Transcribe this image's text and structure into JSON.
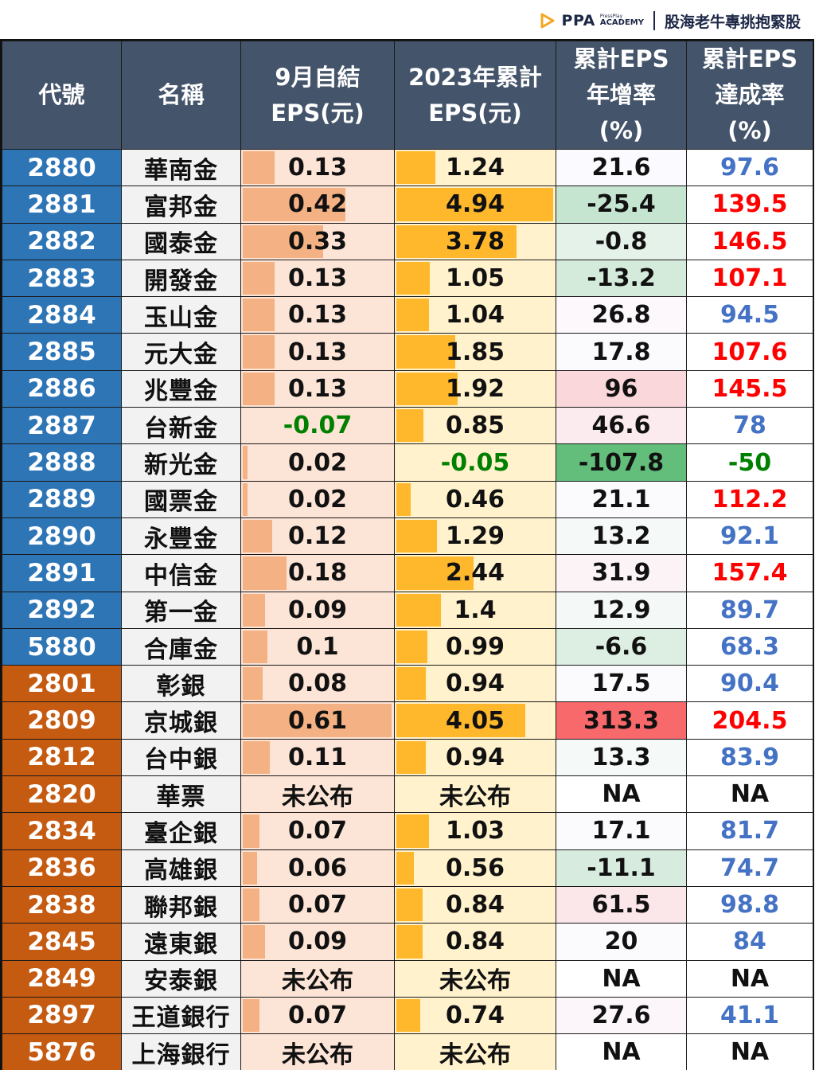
{
  "brand": {
    "logo": "ppa-play-icon",
    "name": "PPA",
    "sub_top": "PressPlay",
    "sub_bottom": "ACADEMY",
    "slogan": "股海老牛專挑抱緊股"
  },
  "colors": {
    "header_bg": "#44546a",
    "financial_code_bg": "#2e75b6",
    "bank_code_bg": "#c55a11",
    "eps_month_bar": "#f4b183",
    "eps_month_bg": "#fce4d6",
    "eps_ytd_bar": "#ffb72b",
    "eps_ytd_bg": "#fff2cc",
    "above_target": "#ff0000",
    "below_target": "#4472c4",
    "negative": "#008000"
  },
  "table": {
    "headers": [
      [
        "代號"
      ],
      [
        "名稱"
      ],
      [
        "9月自結",
        "EPS(元)"
      ],
      [
        "2023年累計",
        "EPS(元)"
      ],
      [
        "累計EPS",
        "年增率",
        "(%)"
      ],
      [
        "累計EPS",
        "達成率",
        "(%)"
      ]
    ],
    "rows": [
      {
        "code": "2880",
        "name": "華南金",
        "group": "fin",
        "eps_sep": "0.13",
        "eps_ytd": "1.24",
        "yoy": "21.6",
        "yoy_bg": "#fbfbff",
        "achieve": "97.6",
        "achieve_color": "blue"
      },
      {
        "code": "2881",
        "name": "富邦金",
        "group": "fin",
        "eps_sep": "0.42",
        "eps_ytd": "4.94",
        "yoy": "-25.4",
        "yoy_bg": "#c6e5d1",
        "achieve": "139.5",
        "achieve_color": "red"
      },
      {
        "code": "2882",
        "name": "國泰金",
        "group": "fin",
        "eps_sep": "0.33",
        "eps_ytd": "3.78",
        "yoy": "-0.8",
        "yoy_bg": "#e4f2e9",
        "achieve": "146.5",
        "achieve_color": "red"
      },
      {
        "code": "2883",
        "name": "開發金",
        "group": "fin",
        "eps_sep": "0.13",
        "eps_ytd": "1.05",
        "yoy": "-13.2",
        "yoy_bg": "#d4ebdc",
        "achieve": "107.1",
        "achieve_color": "red"
      },
      {
        "code": "2884",
        "name": "玉山金",
        "group": "fin",
        "eps_sep": "0.13",
        "eps_ytd": "1.04",
        "yoy": "26.8",
        "yoy_bg": "#fcf8fc",
        "achieve": "94.5",
        "achieve_color": "blue"
      },
      {
        "code": "2885",
        "name": "元大金",
        "group": "fin",
        "eps_sep": "0.13",
        "eps_ytd": "1.85",
        "yoy": "17.8",
        "yoy_bg": "#fbfbfd",
        "achieve": "107.6",
        "achieve_color": "red"
      },
      {
        "code": "2886",
        "name": "兆豐金",
        "group": "fin",
        "eps_sep": "0.13",
        "eps_ytd": "1.92",
        "yoy": "96",
        "yoy_bg": "#fad7db",
        "achieve": "145.5",
        "achieve_color": "red"
      },
      {
        "code": "2887",
        "name": "台新金",
        "group": "fin",
        "eps_sep": "-0.07",
        "eps_ytd": "0.85",
        "yoy": "46.6",
        "yoy_bg": "#fcebee",
        "achieve": "78",
        "achieve_color": "blue"
      },
      {
        "code": "2888",
        "name": "新光金",
        "group": "fin",
        "eps_sep": "0.02",
        "eps_ytd": "-0.05",
        "yoy": "-107.8",
        "yoy_bg": "#63be7b",
        "achieve": "-50",
        "achieve_color": "green"
      },
      {
        "code": "2889",
        "name": "國票金",
        "group": "fin",
        "eps_sep": "0.02",
        "eps_ytd": "0.46",
        "yoy": "21.1",
        "yoy_bg": "#fbfbfe",
        "achieve": "112.2",
        "achieve_color": "red"
      },
      {
        "code": "2890",
        "name": "永豐金",
        "group": "fin",
        "eps_sep": "0.12",
        "eps_ytd": "1.29",
        "yoy": "13.2",
        "yoy_bg": "#f5f9f8",
        "achieve": "92.1",
        "achieve_color": "blue"
      },
      {
        "code": "2891",
        "name": "中信金",
        "group": "fin",
        "eps_sep": "0.18",
        "eps_ytd": "2.44",
        "yoy": "31.9",
        "yoy_bg": "#fcf3f6",
        "achieve": "157.4",
        "achieve_color": "red"
      },
      {
        "code": "2892",
        "name": "第一金",
        "group": "fin",
        "eps_sep": "0.09",
        "eps_ytd": "1.4",
        "yoy": "12.9",
        "yoy_bg": "#f4f8f7",
        "achieve": "89.7",
        "achieve_color": "blue"
      },
      {
        "code": "5880",
        "name": "合庫金",
        "group": "fin",
        "eps_sep": "0.1",
        "eps_ytd": "0.99",
        "yoy": "-6.6",
        "yoy_bg": "#ddefe3",
        "achieve": "68.3",
        "achieve_color": "blue"
      },
      {
        "code": "2801",
        "name": "彰銀",
        "group": "bank",
        "eps_sep": "0.08",
        "eps_ytd": "0.94",
        "yoy": "17.5",
        "yoy_bg": "#fbfbfd",
        "achieve": "90.4",
        "achieve_color": "blue"
      },
      {
        "code": "2809",
        "name": "京城銀",
        "group": "bank",
        "eps_sep": "0.61",
        "eps_ytd": "4.05",
        "yoy": "313.3",
        "yoy_bg": "#f8696b",
        "achieve": "204.5",
        "achieve_color": "red"
      },
      {
        "code": "2812",
        "name": "台中銀",
        "group": "bank",
        "eps_sep": "0.11",
        "eps_ytd": "0.94",
        "yoy": "13.3",
        "yoy_bg": "#f5f9f8",
        "achieve": "83.9",
        "achieve_color": "blue"
      },
      {
        "code": "2820",
        "name": "華票",
        "group": "bank",
        "eps_sep": "未公布",
        "eps_ytd": "未公布",
        "yoy": "NA",
        "yoy_bg": "#ffffff",
        "achieve": "NA",
        "achieve_color": "black"
      },
      {
        "code": "2834",
        "name": "臺企銀",
        "group": "bank",
        "eps_sep": "0.07",
        "eps_ytd": "1.03",
        "yoy": "17.1",
        "yoy_bg": "#fbfbfd",
        "achieve": "81.7",
        "achieve_color": "blue"
      },
      {
        "code": "2836",
        "name": "高雄銀",
        "group": "bank",
        "eps_sep": "0.06",
        "eps_ytd": "0.56",
        "yoy": "-11.1",
        "yoy_bg": "#d7ecdf",
        "achieve": "74.7",
        "achieve_color": "blue"
      },
      {
        "code": "2838",
        "name": "聯邦銀",
        "group": "bank",
        "eps_sep": "0.07",
        "eps_ytd": "0.84",
        "yoy": "61.5",
        "yoy_bg": "#fbe6e9",
        "achieve": "98.8",
        "achieve_color": "blue"
      },
      {
        "code": "2845",
        "name": "遠東銀",
        "group": "bank",
        "eps_sep": "0.09",
        "eps_ytd": "0.84",
        "yoy": "20",
        "yoy_bg": "#fbfbfe",
        "achieve": "84",
        "achieve_color": "blue"
      },
      {
        "code": "2849",
        "name": "安泰銀",
        "group": "bank",
        "eps_sep": "未公布",
        "eps_ytd": "未公布",
        "yoy": "NA",
        "yoy_bg": "#ffffff",
        "achieve": "NA",
        "achieve_color": "black"
      },
      {
        "code": "2897",
        "name": "王道銀行",
        "group": "bank",
        "eps_sep": "0.07",
        "eps_ytd": "0.74",
        "yoy": "27.6",
        "yoy_bg": "#fcf6fa",
        "achieve": "41.1",
        "achieve_color": "blue"
      },
      {
        "code": "5876",
        "name": "上海銀行",
        "group": "bank",
        "eps_sep": "未公布",
        "eps_ytd": "未公布",
        "yoy": "NA",
        "yoy_bg": "#ffffff",
        "achieve": "NA",
        "achieve_color": "black"
      }
    ]
  }
}
